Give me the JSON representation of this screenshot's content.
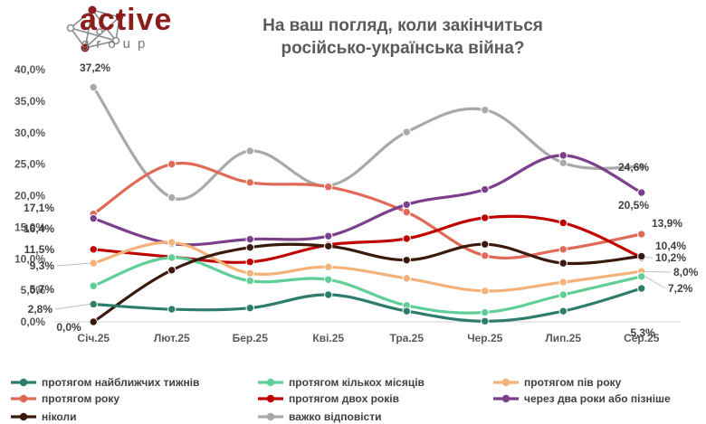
{
  "brand": {
    "name": "active",
    "sub": "group"
  },
  "chart_data": {
    "type": "line",
    "title": "На ваш погляд, коли закінчиться російсько-українська війна?",
    "title_lines": [
      "На ваш погляд, коли закінчиться",
      "російсько-українська війна?"
    ],
    "categories": [
      "Січ.25",
      "Лют.25",
      "Бер.25",
      "Кві.25",
      "Тра.25",
      "Чер.25",
      "Лип.25",
      "Сер.25"
    ],
    "ylim": [
      0,
      40
    ],
    "yticks": [
      "0,0%",
      "5,0%",
      "10,0%",
      "15,0%",
      "20,0%",
      "25,0%",
      "30,0%",
      "35,0%",
      "40,0%"
    ],
    "legend_position": "bottom",
    "series": [
      {
        "name": "протягом найближчих тижнів",
        "color": "#2e7d6b",
        "values": [
          2.8,
          2.0,
          2.2,
          4.3,
          1.7,
          0.1,
          1.7,
          5.3
        ]
      },
      {
        "name": "протягом кількох місяців",
        "color": "#5fcf97",
        "values": [
          5.7,
          10.2,
          6.5,
          6.7,
          2.6,
          1.5,
          4.3,
          7.2
        ]
      },
      {
        "name": "протягом пів року",
        "color": "#f4b27a",
        "values": [
          9.3,
          12.6,
          7.7,
          8.7,
          6.9,
          4.9,
          6.3,
          8.0
        ]
      },
      {
        "name": "протягом року",
        "color": "#e06a57",
        "values": [
          17.1,
          25.0,
          22.1,
          21.4,
          17.4,
          10.5,
          11.5,
          13.9
        ]
      },
      {
        "name": "протягом двох років",
        "color": "#c00000",
        "values": [
          11.5,
          10.3,
          9.5,
          12.2,
          13.2,
          16.5,
          15.7,
          10.2
        ]
      },
      {
        "name": "через два роки або пізніше",
        "color": "#7b3f8c",
        "values": [
          16.4,
          12.4,
          13.1,
          13.6,
          18.6,
          21.0,
          26.4,
          20.5
        ]
      },
      {
        "name": "ніколи",
        "color": "#3b1a0e",
        "values": [
          0.0,
          8.2,
          11.8,
          12.0,
          9.8,
          12.3,
          9.3,
          10.4
        ]
      },
      {
        "name": "важко відповісти",
        "color": "#a9a9a9",
        "values": [
          37.2,
          19.7,
          27.1,
          21.6,
          30.1,
          33.6,
          25.2,
          24.6
        ]
      }
    ],
    "data_labels": [
      {
        "series": 7,
        "index": 0,
        "text": "37,2%"
      },
      {
        "series": 3,
        "index": 0,
        "text": "17,1%"
      },
      {
        "series": 5,
        "index": 0,
        "text": "16,4%"
      },
      {
        "series": 4,
        "index": 0,
        "text": "11,5%"
      },
      {
        "series": 2,
        "index": 0,
        "text": "9,3%"
      },
      {
        "series": 1,
        "index": 0,
        "text": "5,7%"
      },
      {
        "series": 0,
        "index": 0,
        "text": "2,8%"
      },
      {
        "series": 6,
        "index": 0,
        "text": "0,0%"
      },
      {
        "series": 7,
        "index": 7,
        "text": "24,6%"
      },
      {
        "series": 5,
        "index": 7,
        "text": "20,5%"
      },
      {
        "series": 3,
        "index": 7,
        "text": "13,9%"
      },
      {
        "series": 6,
        "index": 7,
        "text": "10,4%"
      },
      {
        "series": 4,
        "index": 7,
        "text": "10,2%"
      },
      {
        "series": 2,
        "index": 7,
        "text": "8,0%"
      },
      {
        "series": 1,
        "index": 7,
        "text": "7,2%"
      },
      {
        "series": 0,
        "index": 7,
        "text": "5,3%"
      }
    ]
  }
}
